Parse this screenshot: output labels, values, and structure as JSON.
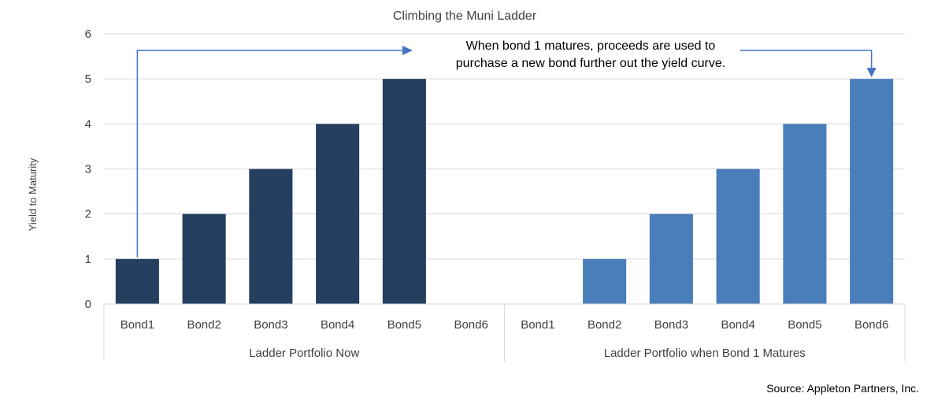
{
  "chart_data": {
    "type": "bar",
    "title": "Climbing the Muni Ladder",
    "ylabel": "Yield to Maturity",
    "xlabel": "",
    "ylim": [
      0,
      6
    ],
    "yticks": [
      0,
      1,
      2,
      3,
      4,
      5,
      6
    ],
    "grid": true,
    "groups": [
      {
        "label": "Ladder Portfolio Now",
        "color": "#243f60",
        "categories": [
          "Bond1",
          "Bond2",
          "Bond3",
          "Bond4",
          "Bond5",
          "Bond6"
        ],
        "values": [
          1,
          2,
          3,
          4,
          5,
          null
        ]
      },
      {
        "label": "Ladder Portfolio when Bond 1 Matures",
        "color": "#4a7ebb",
        "categories": [
          "Bond1",
          "Bond2",
          "Bond3",
          "Bond4",
          "Bond5",
          "Bond6"
        ],
        "values": [
          null,
          1,
          2,
          3,
          4,
          5
        ]
      }
    ],
    "annotation": {
      "lines": [
        "When bond 1 matures, proceeds are used to",
        "purchase a new bond further out the yield curve."
      ],
      "arrow_color": "#4472c4"
    },
    "source": "Source: Appleton Partners, Inc."
  }
}
